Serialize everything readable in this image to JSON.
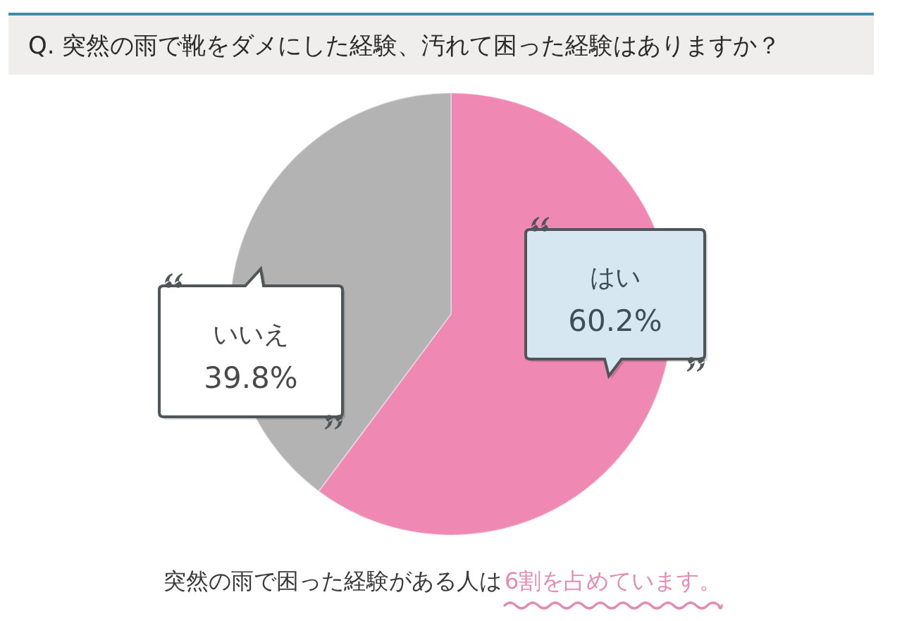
{
  "chart_data": {
    "type": "pie",
    "title": "Q. 突然の雨で靴をダメにした経験、汚れて困った経験はありますか？",
    "categories": [
      "はい",
      "いいえ"
    ],
    "values": [
      60.2,
      39.8
    ],
    "colors": [
      "#ef88b2",
      "#b3b3b3"
    ],
    "value_labels": [
      "60.2%",
      "39.8%"
    ],
    "annotations": [
      "突然の雨で困った経験がある人は",
      "6割を占めています。"
    ]
  }
}
